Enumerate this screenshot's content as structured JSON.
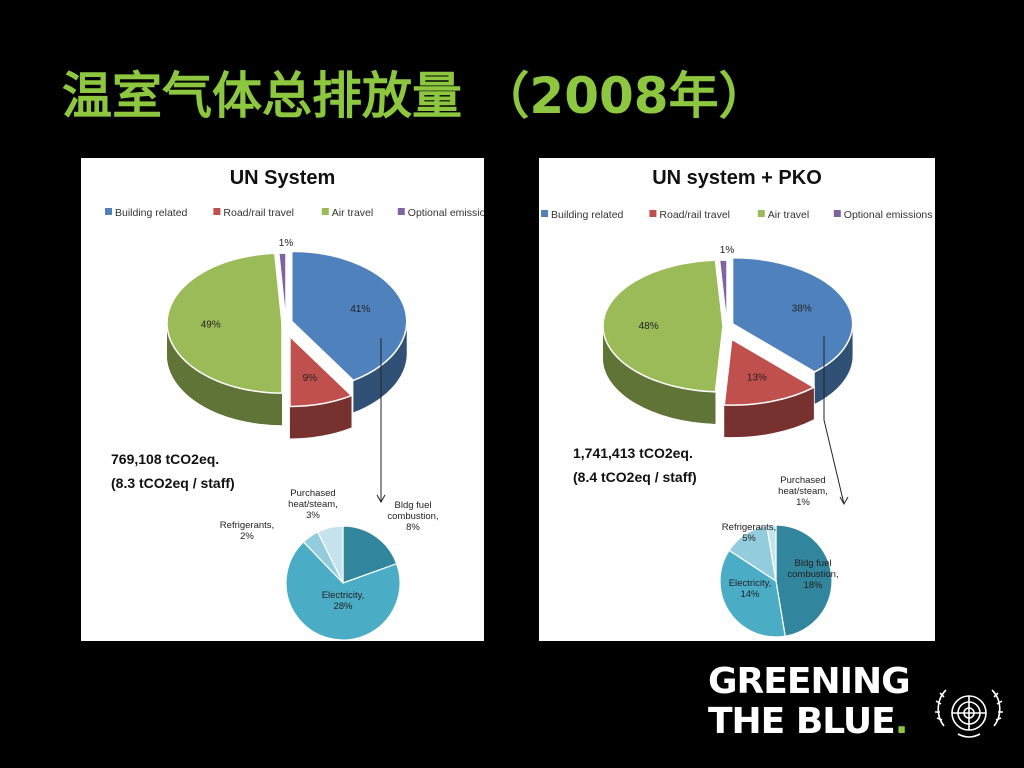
{
  "slide": {
    "title": "温室气体总排放量 （2008年）",
    "logo": {
      "line1": "GREENING",
      "line2_a": "THE ",
      "line2_b": "BLUE",
      "line2_c": ".",
      "icon": "un-emblem-icon"
    }
  },
  "colors": {
    "building": "#4f81bd",
    "road": "#c0504d",
    "air": "#9bbb59",
    "optional": "#8064a2",
    "brand_green": "#8dc63f",
    "sub_dark": "#31859c",
    "sub_mid": "#4bacc6",
    "sub_light": "#93cddd",
    "sub_pale": "#c5e3ec"
  },
  "chart_data": [
    {
      "type": "pie",
      "title": "UN System",
      "legend": [
        "Building related",
        "Road/rail travel",
        "Air travel",
        "Optional emissions"
      ],
      "legend_position": "top",
      "series": [
        {
          "categories": [
            "Building related",
            "Road/rail travel",
            "Air travel",
            "Optional emissions"
          ],
          "values": [
            41,
            9,
            49,
            1
          ]
        }
      ],
      "data_labels": [
        "41%",
        "9%",
        "49%",
        "1%"
      ],
      "total_line1": "769,108 tCO2eq.",
      "total_line2": "(8.3 tCO2eq / staff)",
      "breakdown": {
        "type": "pie",
        "of": "Building related",
        "categories": [
          "Bldg fuel combustion",
          "Electricity",
          "Refrigerants",
          "Purchased heat/steam"
        ],
        "values": [
          8,
          28,
          2,
          3
        ],
        "labels": [
          [
            "Bldg fuel",
            "combustion,",
            "8%"
          ],
          [
            "Electricity,",
            "28%"
          ],
          [
            "Refrigerants,",
            "2%"
          ],
          [
            "Purchased",
            "heat/steam,",
            "3%"
          ]
        ]
      }
    },
    {
      "type": "pie",
      "title": "UN system + PKO",
      "legend": [
        "Building related",
        "Road/rail travel",
        "Air travel",
        "Optional emissions"
      ],
      "legend_position": "top",
      "series": [
        {
          "categories": [
            "Building related",
            "Road/rail travel",
            "Air travel",
            "Optional emissions"
          ],
          "values": [
            38,
            13,
            48,
            1
          ]
        }
      ],
      "data_labels": [
        "38%",
        "13%",
        "48%",
        "1%"
      ],
      "total_line1": "1,741,413 tCO2eq.",
      "total_line2": "(8.4 tCO2eq / staff)",
      "breakdown": {
        "type": "pie",
        "of": "Building related",
        "categories": [
          "Bldg fuel combustion",
          "Electricity",
          "Refrigerants",
          "Purchased heat/steam"
        ],
        "values": [
          18,
          14,
          5,
          1
        ],
        "labels": [
          [
            "Bldg fuel",
            "combustion,",
            "18%"
          ],
          [
            "Electricity,",
            "14%"
          ],
          [
            "Refrigerants,",
            "5%"
          ],
          [
            "Purchased",
            "heat/steam,",
            "1%"
          ]
        ]
      }
    }
  ]
}
